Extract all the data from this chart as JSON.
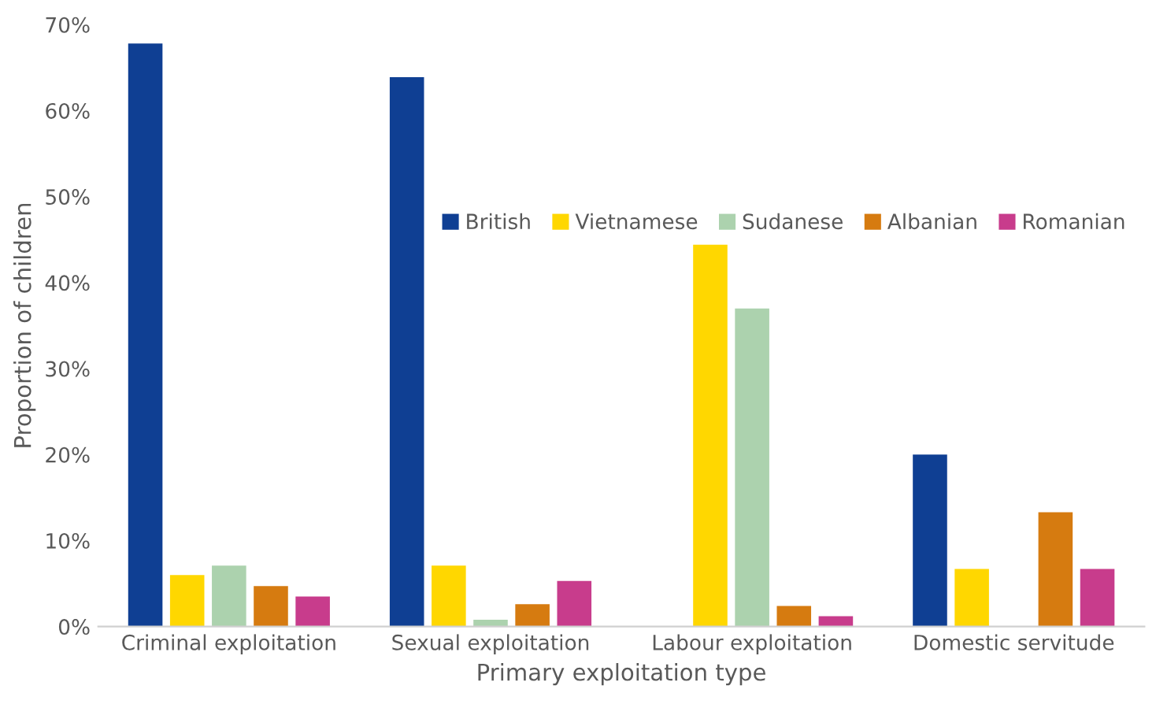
{
  "chart_data": {
    "type": "bar",
    "xlabel": "Primary exploitation type",
    "ylabel": "Proportion of children",
    "categories": [
      "Criminal exploitation",
      "Sexual exploitation",
      "Labour exploitation",
      "Domestic servitude"
    ],
    "series": [
      {
        "name": "British",
        "color": "#0f3f93",
        "values": [
          67.8,
          63.9,
          0,
          20.0
        ]
      },
      {
        "name": "Vietnamese",
        "color": "#ffd700",
        "values": [
          6.0,
          7.1,
          44.4,
          6.7
        ]
      },
      {
        "name": "Sudanese",
        "color": "#acd2ae",
        "values": [
          7.1,
          0.8,
          37.0,
          0
        ]
      },
      {
        "name": "Albanian",
        "color": "#d67b10",
        "values": [
          4.7,
          2.6,
          2.4,
          13.3
        ]
      },
      {
        "name": "Romanian",
        "color": "#c83c8c",
        "values": [
          3.5,
          5.3,
          1.2,
          6.7
        ]
      }
    ],
    "ylim": [
      0,
      70
    ],
    "yticks": [
      {
        "value": 0,
        "label": "0%"
      },
      {
        "value": 10,
        "label": "10%"
      },
      {
        "value": 20,
        "label": "20%"
      },
      {
        "value": 30,
        "label": "30%"
      },
      {
        "value": 40,
        "label": "40%"
      },
      {
        "value": 50,
        "label": "50%"
      },
      {
        "value": 60,
        "label": "60%"
      },
      {
        "value": 70,
        "label": "70%"
      }
    ],
    "grid": false,
    "legend": "right"
  }
}
